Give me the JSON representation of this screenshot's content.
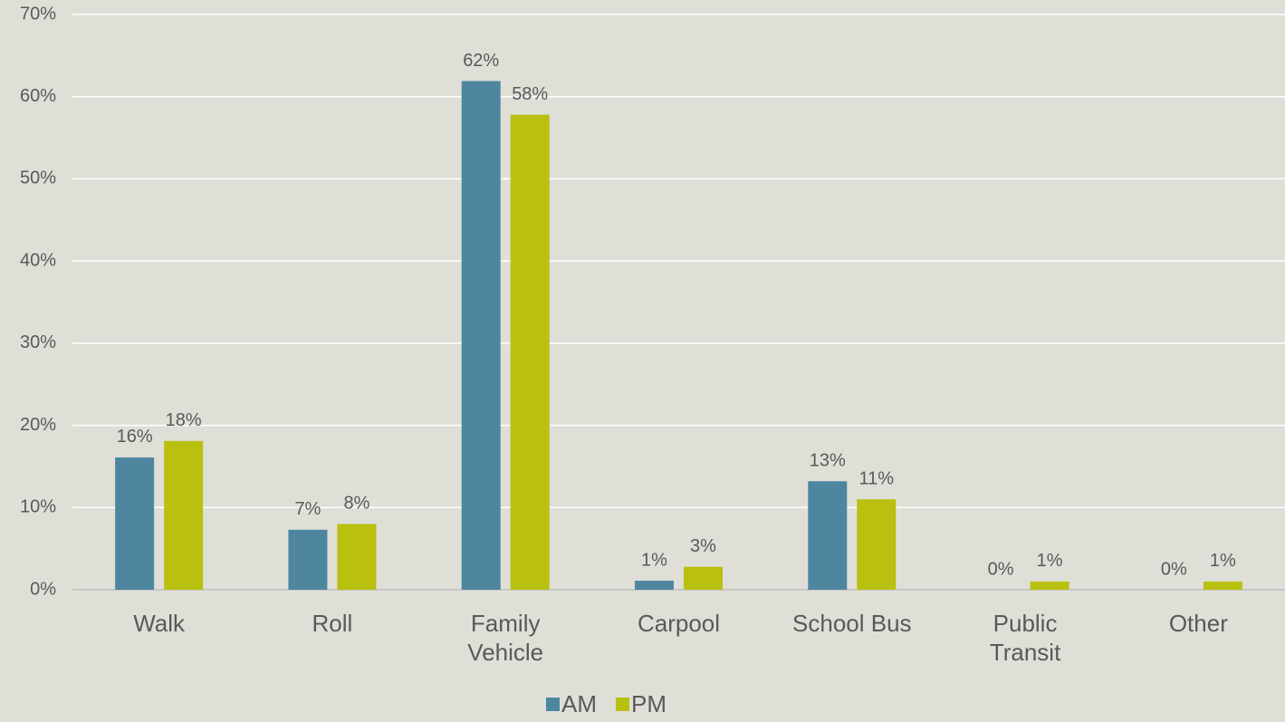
{
  "chart_data": {
    "type": "bar",
    "categories": [
      "Walk",
      "Roll",
      "Family\nVehicle",
      "Carpool",
      "School Bus",
      "Public\nTransit",
      "Other"
    ],
    "series": [
      {
        "name": "AM",
        "color": "#4e86a0",
        "values": [
          16.1,
          7.3,
          61.9,
          1.1,
          13.2,
          0,
          0
        ],
        "value_labels": [
          "16%",
          "7%",
          "62%",
          "1%",
          "13%",
          "0%",
          "0%"
        ]
      },
      {
        "name": "PM",
        "color": "#b9c00f",
        "values": [
          18.1,
          8.0,
          57.8,
          2.8,
          11.0,
          1.0,
          1.0
        ],
        "value_labels": [
          "18%",
          "8%",
          "58%",
          "3%",
          "11%",
          "1%",
          "1%"
        ]
      }
    ],
    "ylim": [
      0,
      70
    ],
    "yticks": [
      {
        "value": 0,
        "label": "0%"
      },
      {
        "value": 10,
        "label": "10%"
      },
      {
        "value": 20,
        "label": "20%"
      },
      {
        "value": 30,
        "label": "30%"
      },
      {
        "value": 40,
        "label": "40%"
      },
      {
        "value": 50,
        "label": "50%"
      },
      {
        "value": 60,
        "label": "60%"
      },
      {
        "value": 70,
        "label": "70%"
      }
    ],
    "grid": true,
    "legend": "bottom"
  }
}
